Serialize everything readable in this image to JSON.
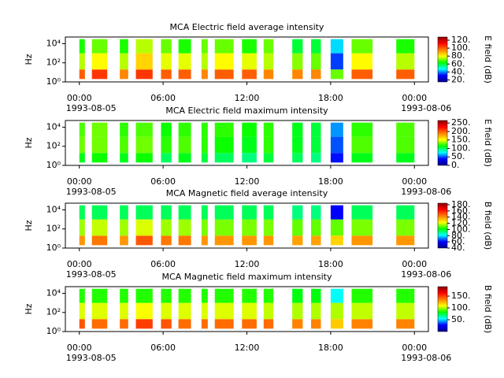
{
  "chart_data": [
    {
      "type": "heatmap",
      "title": "MCA  Electric field average intensity",
      "ylabel": "Hz",
      "colorbar_label": "E field (dB)",
      "xlim": [
        -1,
        25
      ],
      "xticks": [
        {
          "value": 0,
          "label": "00:00"
        },
        {
          "value": 6,
          "label": "06:00"
        },
        {
          "value": 12,
          "label": "12:00"
        },
        {
          "value": 18,
          "label": "18:00"
        },
        {
          "value": 24,
          "label": "00:00"
        }
      ],
      "x_dates": [
        {
          "value": 0,
          "label": "1993-08-05"
        },
        {
          "value": 24,
          "label": "1993-08-06"
        }
      ],
      "yscale": "log",
      "ylim": [
        1,
        50000
      ],
      "yticks": [
        {
          "value": 1,
          "label": "10⁰"
        },
        {
          "value": 100,
          "label": "10²"
        },
        {
          "value": 10000,
          "label": "10⁴"
        }
      ],
      "segments": [
        [
          0,
          0.4
        ],
        [
          0.9,
          2.0
        ],
        [
          2.9,
          3.5
        ],
        [
          4.05,
          5.25
        ],
        [
          5.85,
          6.6
        ],
        [
          7.1,
          8.0
        ],
        [
          8.75,
          9.2
        ],
        [
          9.7,
          11.05
        ],
        [
          11.65,
          12.7
        ],
        [
          13.2,
          13.9
        ],
        [
          15.25,
          16.0
        ],
        [
          16.6,
          17.3
        ],
        [
          18.0,
          18.9
        ],
        [
          19.5,
          21.0
        ],
        [
          22.7,
          24.0
        ]
      ],
      "freq_edges": [
        2,
        20,
        1000,
        30000
      ],
      "z": [
        [
          100,
          75,
          65
        ],
        [
          105,
          80,
          70
        ],
        [
          95,
          75,
          65
        ],
        [
          105,
          85,
          75
        ],
        [
          100,
          78,
          70
        ],
        [
          100,
          78,
          65
        ],
        [
          95,
          75,
          70
        ],
        [
          100,
          80,
          70
        ],
        [
          100,
          78,
          65
        ],
        [
          95,
          75,
          70
        ],
        [
          95,
          72,
          60
        ],
        [
          95,
          70,
          60
        ],
        [
          70,
          35,
          45
        ],
        [
          100,
          80,
          70
        ],
        [
          100,
          75,
          65
        ]
      ],
      "clim": [
        15,
        128
      ],
      "cticks": [
        {
          "value": 20,
          "label": "20."
        },
        {
          "value": 40,
          "label": "40."
        },
        {
          "value": 60,
          "label": "60."
        },
        {
          "value": 80,
          "label": "80."
        },
        {
          "value": 100,
          "label": "100."
        },
        {
          "value": 120,
          "label": "120."
        }
      ],
      "colormap": [
        "#00008f",
        "#0000ff",
        "#00ffff",
        "#00ff00",
        "#ffff00",
        "#ff8000",
        "#ff0000",
        "#8f0000"
      ]
    },
    {
      "type": "heatmap",
      "title": "MCA  Electric field maximum intensity",
      "ylabel": "Hz",
      "colorbar_label": "E field (dB)",
      "xlim": [
        -1,
        25
      ],
      "xticks": [
        {
          "value": 0,
          "label": "00:00"
        },
        {
          "value": 6,
          "label": "06:00"
        },
        {
          "value": 12,
          "label": "12:00"
        },
        {
          "value": 18,
          "label": "18:00"
        },
        {
          "value": 24,
          "label": "00:00"
        }
      ],
      "x_dates": [
        {
          "value": 0,
          "label": "1993-08-05"
        },
        {
          "value": 24,
          "label": "1993-08-06"
        }
      ],
      "yscale": "log",
      "ylim": [
        1,
        50000
      ],
      "yticks": [
        {
          "value": 1,
          "label": "10⁰"
        },
        {
          "value": 100,
          "label": "10²"
        },
        {
          "value": 10000,
          "label": "10⁴"
        }
      ],
      "segments": [
        [
          0,
          0.4
        ],
        [
          0.9,
          2.0
        ],
        [
          2.9,
          3.5
        ],
        [
          4.05,
          5.25
        ],
        [
          5.85,
          6.6
        ],
        [
          7.1,
          8.0
        ],
        [
          8.75,
          9.2
        ],
        [
          9.7,
          11.05
        ],
        [
          11.65,
          12.7
        ],
        [
          13.2,
          13.9
        ],
        [
          15.25,
          16.0
        ],
        [
          16.6,
          17.3
        ],
        [
          18.0,
          18.9
        ],
        [
          19.5,
          21.0
        ],
        [
          22.7,
          24.0
        ]
      ],
      "freq_edges": [
        2,
        20,
        1000,
        30000
      ],
      "z": [
        [
          110,
          130,
          125
        ],
        [
          115,
          130,
          130
        ],
        [
          110,
          125,
          120
        ],
        [
          115,
          130,
          125
        ],
        [
          100,
          120,
          115
        ],
        [
          110,
          125,
          120
        ],
        [
          105,
          120,
          120
        ],
        [
          100,
          115,
          120
        ],
        [
          95,
          110,
          115
        ],
        [
          105,
          120,
          120
        ],
        [
          100,
          110,
          110
        ],
        [
          95,
          105,
          105
        ],
        [
          40,
          50,
          60
        ],
        [
          110,
          125,
          120
        ],
        [
          110,
          125,
          125
        ]
      ],
      "clim": [
        0,
        265
      ],
      "cticks": [
        {
          "value": 0,
          "label": "0."
        },
        {
          "value": 50,
          "label": "50."
        },
        {
          "value": 100,
          "label": "100."
        },
        {
          "value": 150,
          "label": "150."
        },
        {
          "value": 200,
          "label": "200."
        },
        {
          "value": 250,
          "label": "250."
        }
      ],
      "colormap": [
        "#00008f",
        "#0000ff",
        "#00ffff",
        "#00ff00",
        "#ffff00",
        "#ff8000",
        "#ff0000",
        "#8f0000"
      ]
    },
    {
      "type": "heatmap",
      "title": "MCA  Magnetic field average intensity",
      "ylabel": "Hz",
      "colorbar_label": "B field (dB)",
      "xlim": [
        -1,
        25
      ],
      "xticks": [
        {
          "value": 0,
          "label": "00:00"
        },
        {
          "value": 6,
          "label": "06:00"
        },
        {
          "value": 12,
          "label": "12:00"
        },
        {
          "value": 18,
          "label": "18:00"
        },
        {
          "value": 24,
          "label": "00:00"
        }
      ],
      "x_dates": [
        {
          "value": 0,
          "label": "1993-08-05"
        },
        {
          "value": 24,
          "label": "1993-08-06"
        }
      ],
      "yscale": "log",
      "ylim": [
        1,
        50000
      ],
      "yticks": [
        {
          "value": 1,
          "label": "10⁰"
        },
        {
          "value": 100,
          "label": "10²"
        },
        {
          "value": 10000,
          "label": "10⁴"
        }
      ],
      "segments": [
        [
          0,
          0.4
        ],
        [
          0.9,
          2.0
        ],
        [
          2.9,
          3.5
        ],
        [
          4.05,
          5.25
        ],
        [
          5.85,
          6.6
        ],
        [
          7.1,
          8.0
        ],
        [
          8.75,
          9.2
        ],
        [
          9.7,
          11.05
        ],
        [
          11.65,
          12.7
        ],
        [
          13.2,
          13.9
        ],
        [
          15.25,
          16.0
        ],
        [
          16.6,
          17.3
        ],
        [
          18.0,
          18.9
        ],
        [
          19.5,
          21.0
        ],
        [
          22.7,
          24.0
        ]
      ],
      "freq_edges": [
        2,
        20,
        1000,
        30000
      ],
      "z": [
        [
          140,
          115,
          95
        ],
        [
          145,
          118,
          95
        ],
        [
          140,
          115,
          95
        ],
        [
          150,
          120,
          95
        ],
        [
          145,
          115,
          95
        ],
        [
          145,
          115,
          95
        ],
        [
          140,
          112,
          95
        ],
        [
          140,
          112,
          95
        ],
        [
          140,
          112,
          95
        ],
        [
          140,
          112,
          95
        ],
        [
          138,
          110,
          92
        ],
        [
          138,
          110,
          92
        ],
        [
          130,
          110,
          60
        ],
        [
          140,
          112,
          95
        ],
        [
          140,
          112,
          95
        ]
      ],
      "clim": [
        40,
        185
      ],
      "cticks": [
        {
          "value": 40,
          "label": "40."
        },
        {
          "value": 60,
          "label": "60."
        },
        {
          "value": 80,
          "label": "80."
        },
        {
          "value": 100,
          "label": "100."
        },
        {
          "value": 120,
          "label": "120."
        },
        {
          "value": 140,
          "label": "140."
        },
        {
          "value": 160,
          "label": "160."
        },
        {
          "value": 180,
          "label": "180."
        }
      ],
      "colormap": [
        "#00008f",
        "#0000ff",
        "#00ffff",
        "#00ff00",
        "#ffff00",
        "#ff8000",
        "#ff0000",
        "#8f0000"
      ]
    },
    {
      "type": "heatmap",
      "title": "MCA  Magnetic field maximum intensity",
      "ylabel": "Hz",
      "colorbar_label": "B field (dB)",
      "xlim": [
        -1,
        25
      ],
      "xticks": [
        {
          "value": 0,
          "label": "00:00"
        },
        {
          "value": 6,
          "label": "06:00"
        },
        {
          "value": 12,
          "label": "12:00"
        },
        {
          "value": 18,
          "label": "18:00"
        },
        {
          "value": 24,
          "label": "00:00"
        }
      ],
      "x_dates": [
        {
          "value": 0,
          "label": "1993-08-05"
        },
        {
          "value": 24,
          "label": "1993-08-06"
        }
      ],
      "yscale": "log",
      "ylim": [
        1,
        50000
      ],
      "yticks": [
        {
          "value": 1,
          "label": "10⁰"
        },
        {
          "value": 100,
          "label": "10²"
        },
        {
          "value": 10000,
          "label": "10⁴"
        }
      ],
      "segments": [
        [
          0,
          0.4
        ],
        [
          0.9,
          2.0
        ],
        [
          2.9,
          3.5
        ],
        [
          4.05,
          5.25
        ],
        [
          5.85,
          6.6
        ],
        [
          7.1,
          8.0
        ],
        [
          8.75,
          9.2
        ],
        [
          9.7,
          11.05
        ],
        [
          11.65,
          12.7
        ],
        [
          13.2,
          13.9
        ],
        [
          15.25,
          16.0
        ],
        [
          16.6,
          17.3
        ],
        [
          18.0,
          18.9
        ],
        [
          19.5,
          21.0
        ],
        [
          22.7,
          24.0
        ]
      ],
      "freq_edges": [
        2,
        20,
        1000,
        30000
      ],
      "z": [
        [
          145,
          105,
          85
        ],
        [
          140,
          105,
          85
        ],
        [
          140,
          105,
          85
        ],
        [
          150,
          108,
          85
        ],
        [
          145,
          105,
          85
        ],
        [
          140,
          105,
          85
        ],
        [
          140,
          105,
          85
        ],
        [
          140,
          105,
          85
        ],
        [
          140,
          105,
          85
        ],
        [
          140,
          102,
          85
        ],
        [
          135,
          100,
          80
        ],
        [
          135,
          100,
          80
        ],
        [
          120,
          100,
          55
        ],
        [
          135,
          102,
          85
        ],
        [
          135,
          102,
          85
        ]
      ],
      "clim": [
        0,
        190
      ],
      "cticks": [
        {
          "value": 50,
          "label": "50."
        },
        {
          "value": 100,
          "label": "100."
        },
        {
          "value": 150,
          "label": "150."
        }
      ],
      "colormap": [
        "#00008f",
        "#0000ff",
        "#00ffff",
        "#00ff00",
        "#ffff00",
        "#ff8000",
        "#ff0000",
        "#8f0000"
      ]
    }
  ]
}
